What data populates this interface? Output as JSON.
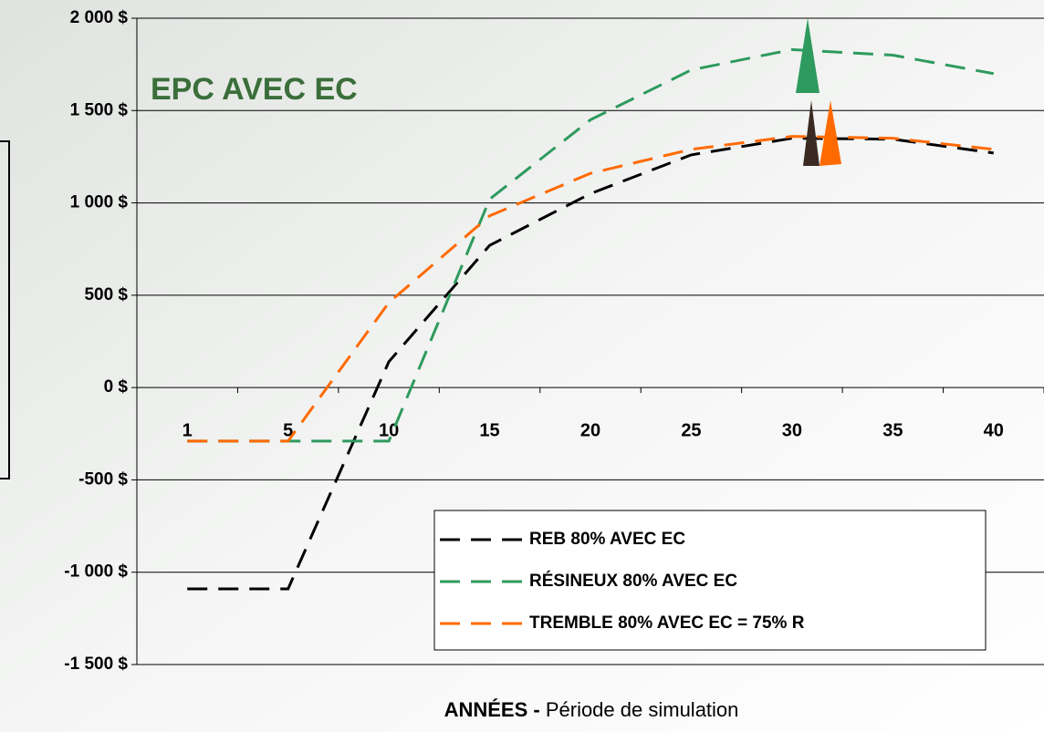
{
  "chart_data": {
    "type": "line",
    "title": "EPC AVEC EC",
    "x_label": "ANNÉES -",
    "x_label_detail": "Période de simulation",
    "categories": [
      "1",
      "5",
      "10",
      "15",
      "20",
      "25",
      "30",
      "35",
      "40"
    ],
    "series": [
      {
        "name": "REB 80% AVEC EC",
        "color": "#000000",
        "values": [
          -1090,
          -1090,
          140,
          770,
          1050,
          1260,
          1350,
          1345,
          1270
        ]
      },
      {
        "name": "RÉSINEUX 80% AVEC EC",
        "color": "#2e9a5e",
        "values": [
          -290,
          -290,
          -290,
          1020,
          1450,
          1720,
          1830,
          1800,
          1700
        ]
      },
      {
        "name": "TREMBLE 80% AVEC EC = 75% R",
        "color": "#ff6a00",
        "values": [
          -290,
          -290,
          460,
          930,
          1160,
          1290,
          1360,
          1350,
          1290
        ]
      }
    ],
    "ylim": [
      -1500,
      2000
    ],
    "yticks": [
      {
        "value": -1500,
        "label": "-1 500 $"
      },
      {
        "value": -1000,
        "label": "-1 000 $"
      },
      {
        "value": -500,
        "label": "-500 $"
      },
      {
        "value": 0,
        "label": "0 $"
      },
      {
        "value": 500,
        "label": "500 $"
      },
      {
        "value": 1000,
        "label": "1 000 $"
      },
      {
        "value": 1500,
        "label": "1 500 $"
      },
      {
        "value": 2000,
        "label": "2 000 $"
      }
    ],
    "grid": true
  }
}
